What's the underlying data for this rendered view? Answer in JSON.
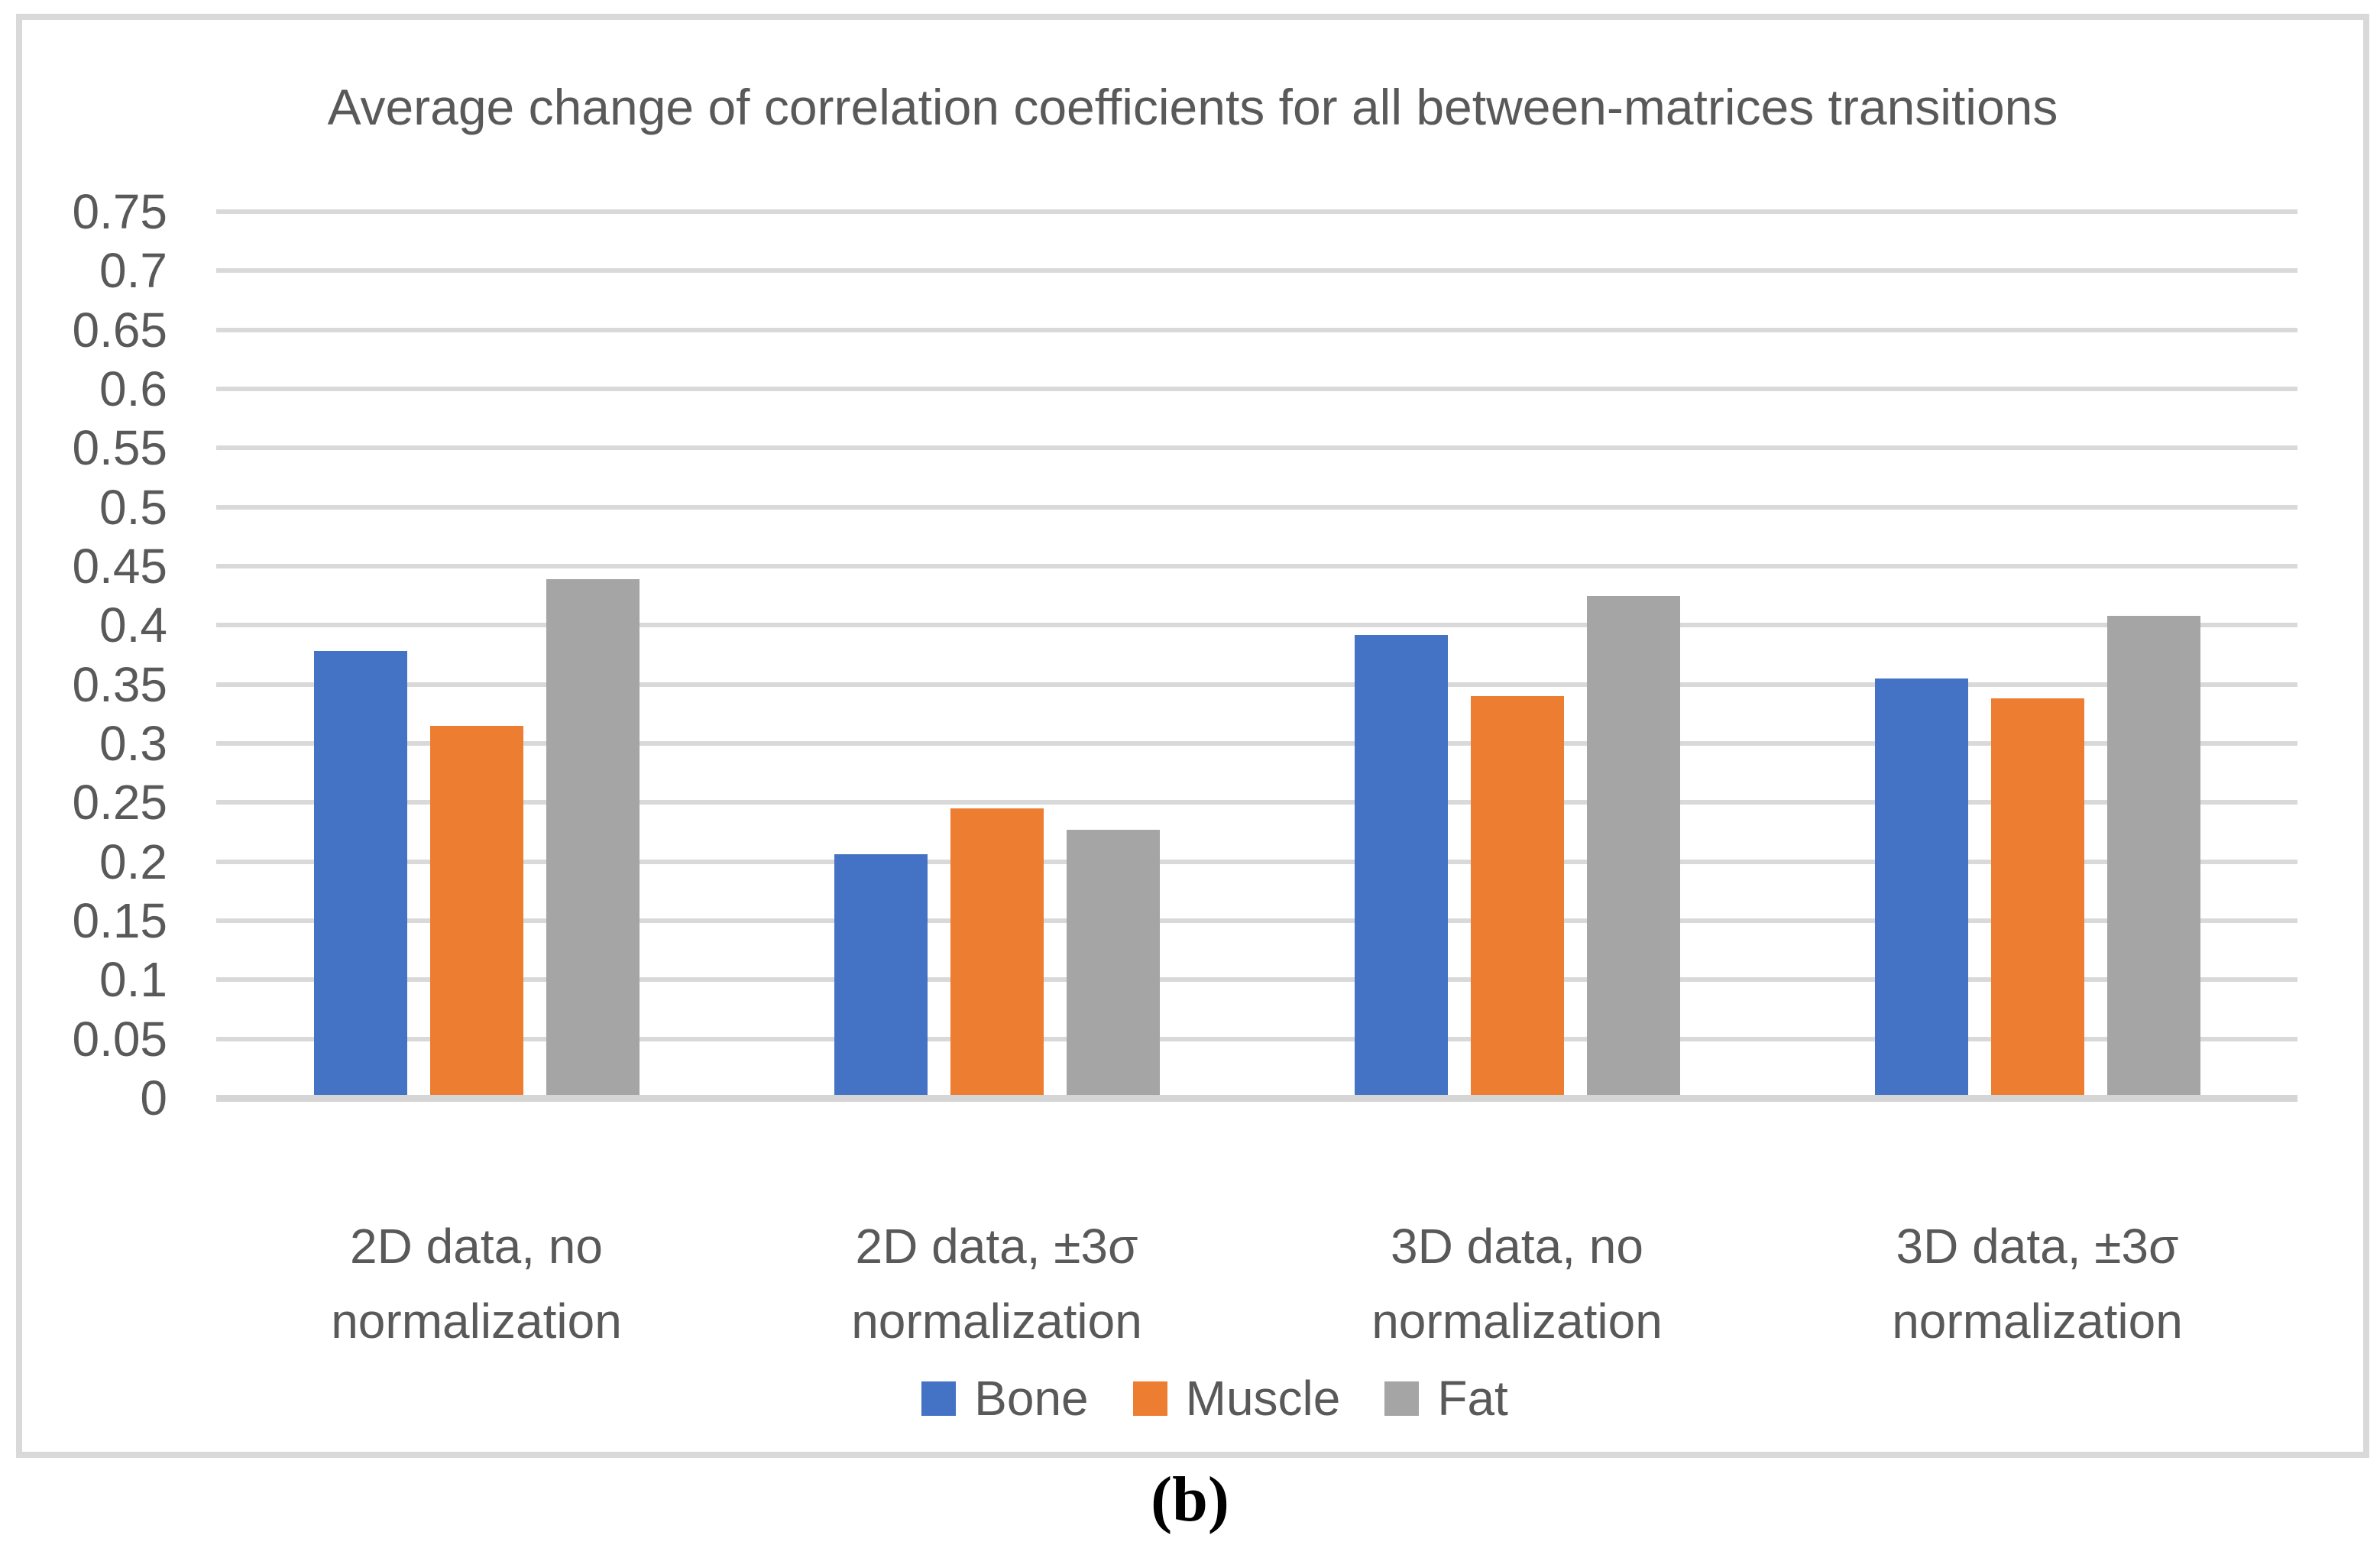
{
  "figure": {
    "caption": "(b)"
  },
  "colors": {
    "background": "#FFFFFF",
    "frame_border": "#D9D9D9",
    "gridline": "#D9D9D9",
    "axis_line": "#D5D5D5",
    "text": "#595959",
    "caption_text": "#000000",
    "bone": "#4472C4",
    "muscle": "#ED7D31",
    "fat": "#A5A5A5"
  },
  "chart_data": {
    "type": "bar",
    "title": "Average change of correlation coefficients for all between-matrices transitions",
    "xlabel": "",
    "ylabel": "",
    "ylim": [
      0,
      0.75
    ],
    "ytick_step": 0.05,
    "grid": true,
    "legend_position": "bottom",
    "categories": [
      {
        "line1": "2D data, no",
        "line2": "normalization"
      },
      {
        "line1": "2D data, ±3σ",
        "line2": "normalization"
      },
      {
        "line1": "3D data, no",
        "line2": "normalization"
      },
      {
        "line1": "3D data, ±3σ",
        "line2": "normalization"
      }
    ],
    "series": [
      {
        "name": "Bone",
        "color": "#4472C4",
        "values": [
          0.378,
          0.206,
          0.392,
          0.355
        ]
      },
      {
        "name": "Muscle",
        "color": "#ED7D31",
        "values": [
          0.315,
          0.245,
          0.34,
          0.338
        ]
      },
      {
        "name": "Fat",
        "color": "#A5A5A5",
        "values": [
          0.439,
          0.227,
          0.425,
          0.408
        ]
      }
    ],
    "yticks": [
      {
        "value": 0.75,
        "label": "0.75"
      },
      {
        "value": 0.7,
        "label": "0.7"
      },
      {
        "value": 0.65,
        "label": "0.65"
      },
      {
        "value": 0.6,
        "label": "0.6"
      },
      {
        "value": 0.55,
        "label": "0.55"
      },
      {
        "value": 0.5,
        "label": "0.5"
      },
      {
        "value": 0.45,
        "label": "0.45"
      },
      {
        "value": 0.4,
        "label": "0.4"
      },
      {
        "value": 0.35,
        "label": "0.35"
      },
      {
        "value": 0.3,
        "label": "0.3"
      },
      {
        "value": 0.25,
        "label": "0.25"
      },
      {
        "value": 0.2,
        "label": "0.2"
      },
      {
        "value": 0.15,
        "label": "0.15"
      },
      {
        "value": 0.1,
        "label": "0.1"
      },
      {
        "value": 0.05,
        "label": "0.05"
      },
      {
        "value": 0.0,
        "label": "0"
      }
    ]
  }
}
